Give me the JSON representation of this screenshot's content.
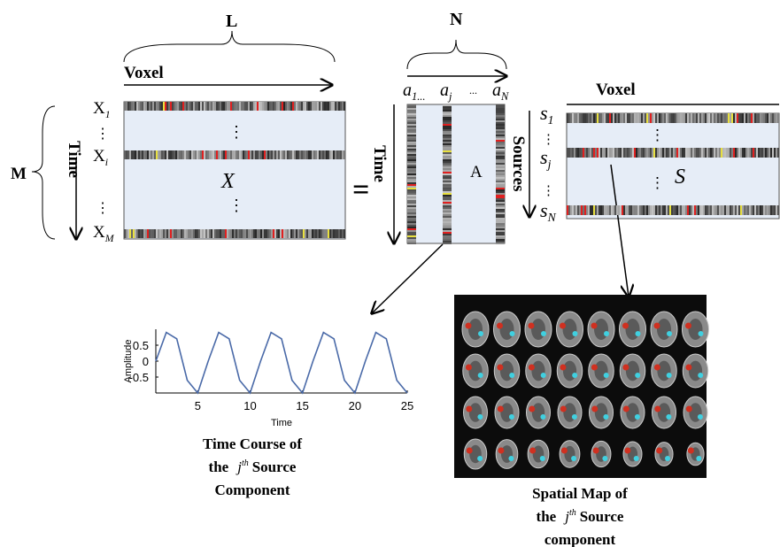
{
  "matrix_x": {
    "width_label": "L",
    "axis_label": "Voxel",
    "height_label": "M",
    "time_label": "Time",
    "dots": "⋮",
    "rows": [
      {
        "base": "X",
        "sub": "1"
      },
      {
        "base": "X",
        "sub": "i"
      },
      {
        "base": "X",
        "sub": "M"
      }
    ],
    "name": "X"
  },
  "equals": "=",
  "matrix_a": {
    "width_label": "N",
    "time_label": "Time",
    "name": "A",
    "dots": "...",
    "columns": [
      {
        "base": "a",
        "sub": "1..."
      },
      {
        "base": "a",
        "sub": "j"
      },
      {
        "base": "a",
        "sub": "N"
      }
    ]
  },
  "matrix_s": {
    "axis_label": "Voxel",
    "sources_label": "Sources",
    "name": "S",
    "dots": "⋮",
    "rows": [
      {
        "base": "s",
        "sub": "1"
      },
      {
        "base": "s",
        "sub": "j"
      },
      {
        "base": "s",
        "sub": "N"
      }
    ]
  },
  "time_course": {
    "y_label": "Amplitude",
    "x_label": "Time",
    "color": "#4a6aa8",
    "x": [
      1,
      2,
      3,
      4,
      5,
      6,
      7,
      8,
      9,
      10,
      11,
      12,
      13,
      14,
      15,
      16,
      17,
      18,
      19,
      20,
      21,
      22,
      23,
      24,
      25
    ],
    "values": [
      0,
      0.9,
      0.7,
      -0.6,
      -1,
      0,
      0.9,
      0.7,
      -0.6,
      -1,
      0,
      0.9,
      0.7,
      -0.6,
      -1,
      0,
      0.9,
      0.7,
      -0.6,
      -1,
      0,
      0.9,
      0.7,
      -0.6,
      -1
    ],
    "xlim": [
      1,
      25
    ],
    "ylim": [
      -1,
      1
    ],
    "xticks": [
      5,
      10,
      15,
      20,
      25
    ],
    "yticks": [
      -0.5,
      0,
      0.5
    ],
    "caption": {
      "line1": "Time Course of",
      "pre": "the",
      "base": "j",
      "sup": "th",
      "post": "Source",
      "line3": "Component"
    }
  },
  "spatial_map": {
    "caption": {
      "line1": "Spatial Map of",
      "pre": "the",
      "base": "j",
      "sup": "th",
      "post": "Source",
      "line3": "component"
    }
  }
}
